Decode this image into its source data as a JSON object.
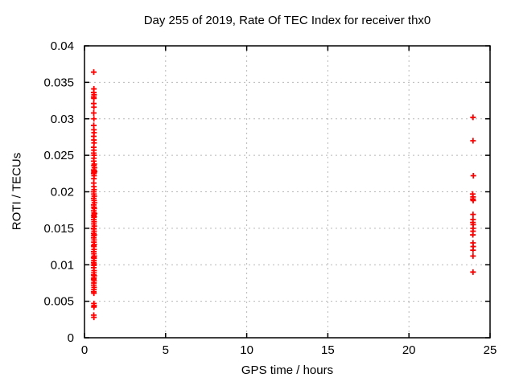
{
  "chart_data": {
    "type": "scatter",
    "title": "Day 255 of 2019, Rate Of TEC Index for receiver thx0",
    "xlabel": "GPS time / hours",
    "ylabel": "ROTI / TECUs",
    "xlim": [
      0,
      25
    ],
    "ylim": [
      0,
      0.04
    ],
    "xticks": {
      "values": [
        0,
        5,
        10,
        15,
        20,
        25
      ],
      "labels": [
        "0",
        "5",
        "10",
        "15",
        "20",
        "25"
      ]
    },
    "yticks": {
      "values": [
        0,
        0.005,
        0.01,
        0.015,
        0.02,
        0.025,
        0.03,
        0.035,
        0.04
      ],
      "labels": [
        "0",
        "0.005",
        "0.01",
        "0.015",
        "0.02",
        "0.025",
        "0.03",
        "0.035",
        "0.04"
      ]
    },
    "grid": true,
    "legend": false,
    "marker": "plus",
    "colors": {
      "marker": "#ff0000",
      "grid": "#b8b8b8",
      "border": "#000000",
      "background": "#ffffff",
      "text": "#000000"
    },
    "series": [
      {
        "points": [
          [
            0.57,
            0.0364
          ],
          [
            0.58,
            0.0341
          ],
          [
            0.57,
            0.0336
          ],
          [
            0.59,
            0.0333
          ],
          [
            0.57,
            0.033
          ],
          [
            0.58,
            0.0328
          ],
          [
            0.57,
            0.0321
          ],
          [
            0.58,
            0.0316
          ],
          [
            0.57,
            0.0308
          ],
          [
            0.58,
            0.03
          ],
          [
            0.57,
            0.0291
          ],
          [
            0.58,
            0.0285
          ],
          [
            0.59,
            0.0281
          ],
          [
            0.57,
            0.0276
          ],
          [
            0.58,
            0.0271
          ],
          [
            0.59,
            0.0267
          ],
          [
            0.57,
            0.0261
          ],
          [
            0.58,
            0.0257
          ],
          [
            0.57,
            0.0253
          ],
          [
            0.59,
            0.025
          ],
          [
            0.58,
            0.0246
          ],
          [
            0.57,
            0.0242
          ],
          [
            0.6,
            0.0238
          ],
          [
            0.58,
            0.0236
          ],
          [
            0.61,
            0.0233
          ],
          [
            0.57,
            0.023
          ],
          [
            0.59,
            0.0229
          ],
          [
            0.62,
            0.0228
          ],
          [
            0.58,
            0.0227
          ],
          [
            0.6,
            0.0226
          ],
          [
            0.57,
            0.0225
          ],
          [
            0.59,
            0.0222
          ],
          [
            0.58,
            0.0218
          ],
          [
            0.57,
            0.0212
          ],
          [
            0.58,
            0.0207
          ],
          [
            0.59,
            0.0203
          ],
          [
            0.57,
            0.02
          ],
          [
            0.58,
            0.0197
          ],
          [
            0.6,
            0.0194
          ],
          [
            0.57,
            0.0191
          ],
          [
            0.59,
            0.0188
          ],
          [
            0.61,
            0.0185
          ],
          [
            0.57,
            0.0182
          ],
          [
            0.58,
            0.0179
          ],
          [
            0.6,
            0.0177
          ],
          [
            0.57,
            0.0174
          ],
          [
            0.59,
            0.0171
          ],
          [
            0.62,
            0.017
          ],
          [
            0.57,
            0.0168
          ],
          [
            0.6,
            0.0166
          ],
          [
            0.58,
            0.0165
          ],
          [
            0.57,
            0.0162
          ],
          [
            0.59,
            0.0159
          ],
          [
            0.58,
            0.0156
          ],
          [
            0.6,
            0.0153
          ],
          [
            0.57,
            0.015
          ],
          [
            0.58,
            0.0149
          ],
          [
            0.59,
            0.0146
          ],
          [
            0.57,
            0.0143
          ],
          [
            0.6,
            0.0141
          ],
          [
            0.58,
            0.014
          ],
          [
            0.57,
            0.0137
          ],
          [
            0.59,
            0.0134
          ],
          [
            0.58,
            0.0131
          ],
          [
            0.6,
            0.0128
          ],
          [
            0.57,
            0.0126
          ],
          [
            0.58,
            0.0125
          ],
          [
            0.59,
            0.0121
          ],
          [
            0.57,
            0.0118
          ],
          [
            0.58,
            0.0115
          ],
          [
            0.6,
            0.0112
          ],
          [
            0.57,
            0.011
          ],
          [
            0.59,
            0.0109
          ],
          [
            0.58,
            0.0106
          ],
          [
            0.57,
            0.0103
          ],
          [
            0.59,
            0.0101
          ],
          [
            0.58,
            0.0099
          ],
          [
            0.57,
            0.0096
          ],
          [
            0.59,
            0.0092
          ],
          [
            0.58,
            0.0089
          ],
          [
            0.57,
            0.0086
          ],
          [
            0.6,
            0.0085
          ],
          [
            0.58,
            0.0082
          ],
          [
            0.57,
            0.008
          ],
          [
            0.59,
            0.0078
          ],
          [
            0.58,
            0.0075
          ],
          [
            0.57,
            0.0072
          ],
          [
            0.59,
            0.0069
          ],
          [
            0.58,
            0.0066
          ],
          [
            0.57,
            0.0063
          ],
          [
            0.58,
            0.0061
          ],
          [
            0.58,
            0.0047
          ],
          [
            0.59,
            0.0044
          ],
          [
            0.58,
            0.0042
          ],
          [
            0.57,
            0.0031
          ],
          [
            0.58,
            0.0028
          ],
          [
            23.95,
            0.0302
          ],
          [
            23.95,
            0.027
          ],
          [
            23.97,
            0.0222
          ],
          [
            23.93,
            0.0197
          ],
          [
            23.95,
            0.0193
          ],
          [
            23.94,
            0.019
          ],
          [
            23.96,
            0.0188
          ],
          [
            23.95,
            0.0169
          ],
          [
            23.95,
            0.0162
          ],
          [
            23.94,
            0.0158
          ],
          [
            23.96,
            0.0155
          ],
          [
            23.95,
            0.015
          ],
          [
            23.95,
            0.0146
          ],
          [
            23.94,
            0.0141
          ],
          [
            23.95,
            0.013
          ],
          [
            23.96,
            0.0125
          ],
          [
            23.95,
            0.012
          ],
          [
            23.95,
            0.0112
          ],
          [
            23.95,
            0.009
          ]
        ]
      }
    ]
  }
}
